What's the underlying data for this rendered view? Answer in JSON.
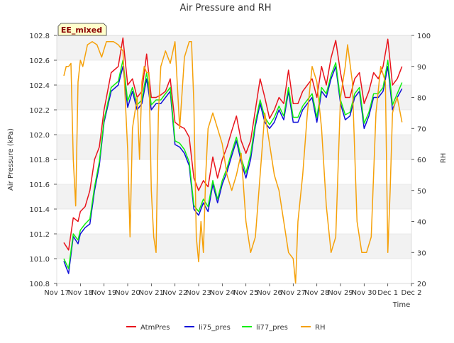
{
  "chart_data": {
    "type": "line",
    "title": "Air Pressure and RH",
    "badge": "EE_mixed",
    "xlabel": "Time",
    "ylabel_left": "Air Pressure (kPa)",
    "ylabel_right": "RH",
    "xlim": [
      0,
      15
    ],
    "ylim_left": [
      100.8,
      102.8
    ],
    "ylim_right": [
      20,
      100
    ],
    "x_ticks": [
      {
        "x": 0,
        "label": "Nov 17"
      },
      {
        "x": 1,
        "label": "Nov 18"
      },
      {
        "x": 2,
        "label": "Nov 19"
      },
      {
        "x": 3,
        "label": "Nov 20"
      },
      {
        "x": 4,
        "label": "Nov 21"
      },
      {
        "x": 5,
        "label": "Nov 22"
      },
      {
        "x": 6,
        "label": "Nov 23"
      },
      {
        "x": 7,
        "label": "Nov 24"
      },
      {
        "x": 8,
        "label": "Nov 25"
      },
      {
        "x": 9,
        "label": "Nov 26"
      },
      {
        "x": 10,
        "label": "Nov 27"
      },
      {
        "x": 11,
        "label": "Nov 28"
      },
      {
        "x": 12,
        "label": "Nov 29"
      },
      {
        "x": 13,
        "label": "Nov 30"
      },
      {
        "x": 14,
        "label": "Dec 1"
      },
      {
        "x": 15,
        "label": "Dec 2"
      }
    ],
    "y_ticks_left": [
      {
        "v": 100.8,
        "label": "100.8"
      },
      {
        "v": 101.0,
        "label": "101.0"
      },
      {
        "v": 101.2,
        "label": "101.2"
      },
      {
        "v": 101.4,
        "label": "101.4"
      },
      {
        "v": 101.6,
        "label": "101.6"
      },
      {
        "v": 101.8,
        "label": "101.8"
      },
      {
        "v": 102.0,
        "label": "102.0"
      },
      {
        "v": 102.2,
        "label": "102.2"
      },
      {
        "v": 102.4,
        "label": "102.4"
      },
      {
        "v": 102.6,
        "label": "102.6"
      },
      {
        "v": 102.8,
        "label": "102.8"
      }
    ],
    "y_ticks_right": [
      {
        "v": 20,
        "label": "20"
      },
      {
        "v": 30,
        "label": "30"
      },
      {
        "v": 40,
        "label": "40"
      },
      {
        "v": 50,
        "label": "50"
      },
      {
        "v": 60,
        "label": "60"
      },
      {
        "v": 70,
        "label": "70"
      },
      {
        "v": 80,
        "label": "80"
      },
      {
        "v": 90,
        "label": "90"
      },
      {
        "v": 100,
        "label": "100"
      }
    ],
    "grid": "horizontal bands",
    "legend_position": "bottom",
    "series": [
      {
        "name": "AtmPres",
        "color": "#e8141c",
        "axis": "left",
        "x": [
          0.3,
          0.5,
          0.7,
          0.9,
          1.0,
          1.2,
          1.4,
          1.6,
          1.8,
          2.0,
          2.3,
          2.6,
          2.8,
          3.0,
          3.2,
          3.4,
          3.6,
          3.8,
          4.0,
          4.2,
          4.4,
          4.6,
          4.8,
          5.0,
          5.2,
          5.4,
          5.6,
          5.8,
          6.0,
          6.2,
          6.4,
          6.6,
          6.8,
          7.0,
          7.2,
          7.4,
          7.6,
          7.8,
          8.0,
          8.2,
          8.4,
          8.6,
          8.8,
          9.0,
          9.2,
          9.4,
          9.6,
          9.8,
          10.0,
          10.2,
          10.4,
          10.6,
          10.8,
          11.0,
          11.2,
          11.4,
          11.6,
          11.8,
          12.0,
          12.2,
          12.4,
          12.6,
          12.8,
          13.0,
          13.2,
          13.4,
          13.6,
          13.8,
          14.0,
          14.2,
          14.4,
          14.6
        ],
        "y": [
          101.13,
          101.07,
          101.33,
          101.3,
          101.38,
          101.42,
          101.55,
          101.8,
          101.9,
          102.2,
          102.5,
          102.55,
          102.78,
          102.4,
          102.45,
          102.3,
          102.35,
          102.65,
          102.3,
          102.3,
          102.32,
          102.35,
          102.45,
          102.1,
          102.07,
          102.05,
          101.98,
          101.65,
          101.55,
          101.63,
          101.58,
          101.82,
          101.65,
          101.8,
          101.9,
          102.03,
          102.15,
          101.95,
          101.85,
          101.95,
          102.2,
          102.45,
          102.3,
          102.13,
          102.2,
          102.3,
          102.25,
          102.52,
          102.25,
          102.25,
          102.35,
          102.4,
          102.45,
          102.3,
          102.55,
          102.4,
          102.62,
          102.76,
          102.5,
          102.3,
          102.3,
          102.45,
          102.5,
          102.25,
          102.35,
          102.5,
          102.45,
          102.55,
          102.77,
          102.4,
          102.45,
          102.55
        ]
      },
      {
        "name": "li75_pres",
        "color": "#1010d8",
        "axis": "left",
        "x": [
          0.3,
          0.5,
          0.7,
          0.9,
          1.0,
          1.2,
          1.4,
          1.6,
          1.8,
          2.0,
          2.3,
          2.6,
          2.8,
          3.0,
          3.2,
          3.4,
          3.6,
          3.8,
          4.0,
          4.2,
          4.4,
          4.6,
          4.8,
          5.0,
          5.2,
          5.4,
          5.6,
          5.8,
          6.0,
          6.2,
          6.4,
          6.6,
          6.8,
          7.0,
          7.2,
          7.4,
          7.6,
          7.8,
          8.0,
          8.2,
          8.4,
          8.6,
          8.8,
          9.0,
          9.2,
          9.4,
          9.6,
          9.8,
          10.0,
          10.2,
          10.4,
          10.6,
          10.8,
          11.0,
          11.2,
          11.4,
          11.6,
          11.8,
          12.0,
          12.2,
          12.4,
          12.6,
          12.8,
          13.0,
          13.2,
          13.4,
          13.6,
          13.8,
          14.0,
          14.2,
          14.4,
          14.6
        ],
        "y": [
          100.98,
          100.88,
          101.18,
          101.12,
          101.2,
          101.25,
          101.28,
          101.55,
          101.75,
          102.1,
          102.35,
          102.4,
          102.55,
          102.22,
          102.35,
          102.2,
          102.25,
          102.45,
          102.2,
          102.25,
          102.25,
          102.3,
          102.35,
          101.92,
          101.9,
          101.85,
          101.75,
          101.4,
          101.35,
          101.45,
          101.38,
          101.6,
          101.45,
          101.6,
          101.7,
          101.83,
          101.95,
          101.78,
          101.65,
          101.8,
          102.07,
          102.25,
          102.1,
          102.05,
          102.1,
          102.2,
          102.12,
          102.35,
          102.1,
          102.1,
          102.2,
          102.25,
          102.3,
          102.1,
          102.35,
          102.3,
          102.45,
          102.55,
          102.25,
          102.12,
          102.15,
          102.3,
          102.35,
          102.05,
          102.15,
          102.3,
          102.3,
          102.35,
          102.55,
          102.2,
          102.3,
          102.37
        ]
      },
      {
        "name": "li77_pres",
        "color": "#10ee10",
        "axis": "left",
        "x": [
          0.3,
          0.5,
          0.7,
          0.9,
          1.0,
          1.2,
          1.4,
          1.6,
          1.8,
          2.0,
          2.3,
          2.6,
          2.8,
          3.0,
          3.2,
          3.4,
          3.6,
          3.8,
          4.0,
          4.2,
          4.4,
          4.6,
          4.8,
          5.0,
          5.2,
          5.4,
          5.6,
          5.8,
          6.0,
          6.2,
          6.4,
          6.6,
          6.8,
          7.0,
          7.2,
          7.4,
          7.6,
          7.8,
          8.0,
          8.2,
          8.4,
          8.6,
          8.8,
          9.0,
          9.2,
          9.4,
          9.6,
          9.8,
          10.0,
          10.2,
          10.4,
          10.6,
          10.8,
          11.0,
          11.2,
          11.4,
          11.6,
          11.8,
          12.0,
          12.2,
          12.4,
          12.6,
          12.8,
          13.0,
          13.2,
          13.4,
          13.6,
          13.8,
          14.0,
          14.2,
          14.4,
          14.6
        ],
        "y": [
          101.0,
          100.92,
          101.2,
          101.15,
          101.23,
          101.28,
          101.32,
          101.58,
          101.78,
          102.12,
          102.38,
          102.43,
          102.6,
          102.27,
          102.38,
          102.24,
          102.28,
          102.5,
          102.24,
          102.28,
          102.28,
          102.33,
          102.38,
          101.95,
          101.93,
          101.88,
          101.78,
          101.43,
          101.38,
          101.48,
          101.42,
          101.63,
          101.48,
          101.63,
          101.73,
          101.86,
          101.98,
          101.81,
          101.69,
          101.84,
          102.1,
          102.28,
          102.14,
          102.08,
          102.14,
          102.23,
          102.15,
          102.38,
          102.14,
          102.14,
          102.23,
          102.28,
          102.33,
          102.14,
          102.38,
          102.33,
          102.48,
          102.58,
          102.28,
          102.16,
          102.18,
          102.33,
          102.38,
          102.09,
          102.18,
          102.33,
          102.33,
          102.38,
          102.6,
          102.24,
          102.33,
          102.42
        ]
      },
      {
        "name": "RH",
        "color": "#f5a10a",
        "axis": "right",
        "x": [
          0.3,
          0.4,
          0.5,
          0.6,
          0.7,
          0.8,
          0.9,
          1.0,
          1.1,
          1.3,
          1.5,
          1.7,
          1.9,
          2.1,
          2.4,
          2.6,
          2.8,
          3.0,
          3.1,
          3.2,
          3.4,
          3.5,
          3.6,
          3.7,
          3.8,
          3.9,
          4.0,
          4.1,
          4.2,
          4.3,
          4.4,
          4.6,
          4.8,
          5.0,
          5.2,
          5.4,
          5.6,
          5.7,
          5.8,
          5.9,
          6.0,
          6.1,
          6.2,
          6.3,
          6.4,
          6.6,
          6.8,
          7.0,
          7.2,
          7.4,
          7.6,
          7.8,
          8.0,
          8.2,
          8.4,
          8.6,
          8.8,
          9.0,
          9.2,
          9.4,
          9.6,
          9.8,
          10.0,
          10.1,
          10.2,
          10.4,
          10.6,
          10.8,
          11.0,
          11.2,
          11.4,
          11.6,
          11.8,
          12.0,
          12.2,
          12.3,
          12.5,
          12.7,
          12.9,
          13.1,
          13.3,
          13.5,
          13.7,
          13.9,
          14.0,
          14.1,
          14.2,
          14.3,
          14.4,
          14.6
        ],
        "y": [
          87,
          90,
          90,
          91,
          60,
          45,
          85,
          92,
          90,
          97,
          98,
          97,
          93,
          98,
          98,
          97,
          95,
          63,
          35,
          70,
          80,
          60,
          85,
          90,
          88,
          88,
          50,
          35,
          30,
          75,
          90,
          95,
          91,
          98,
          70,
          93,
          98,
          98,
          78,
          35,
          27,
          40,
          30,
          55,
          70,
          75,
          70,
          65,
          55,
          50,
          55,
          62,
          40,
          30,
          35,
          55,
          75,
          65,
          55,
          50,
          40,
          30,
          28,
          20,
          40,
          55,
          75,
          90,
          85,
          70,
          45,
          30,
          35,
          80,
          90,
          97,
          85,
          40,
          30,
          30,
          35,
          75,
          90,
          85,
          30,
          50,
          75,
          78,
          80,
          72
        ]
      }
    ]
  }
}
